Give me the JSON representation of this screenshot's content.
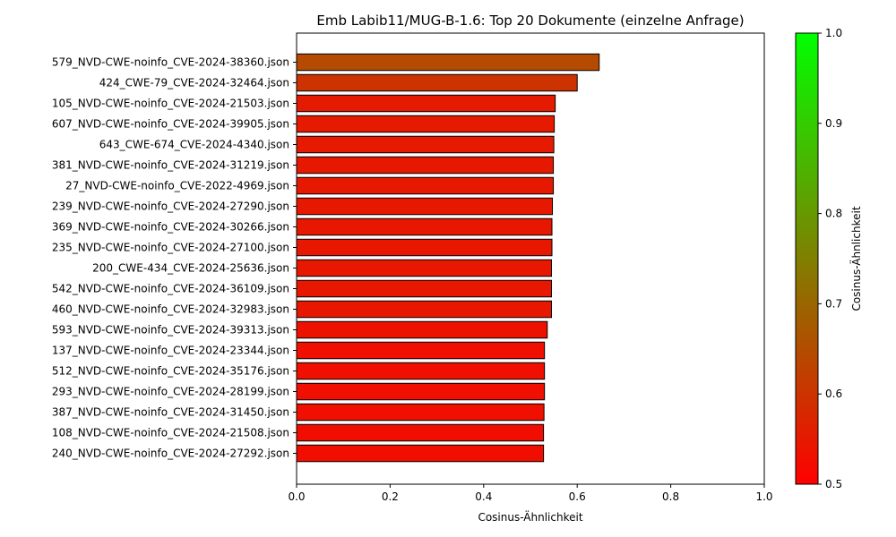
{
  "chart_data": {
    "type": "bar",
    "orientation": "horizontal",
    "title": "Emb Labib11/MUG-B-1.6: Top 20 Dokumente (einzelne Anfrage)",
    "xlabel": "Cosinus-Ähnlichkeit",
    "ylabel": "",
    "xlim": [
      0,
      1.0
    ],
    "xticks": [
      "0.0",
      "0.2",
      "0.4",
      "0.6",
      "0.8",
      "1.0"
    ],
    "grid": false,
    "categories": [
      "579_NVD-CWE-noinfo_CVE-2024-38360.json",
      "424_CWE-79_CVE-2024-32464.json",
      "105_NVD-CWE-noinfo_CVE-2024-21503.json",
      "607_NVD-CWE-noinfo_CVE-2024-39905.json",
      "643_CWE-674_CVE-2024-4340.json",
      "381_NVD-CWE-noinfo_CVE-2024-31219.json",
      "27_NVD-CWE-noinfo_CVE-2022-4969.json",
      "239_NVD-CWE-noinfo_CVE-2024-27290.json",
      "369_NVD-CWE-noinfo_CVE-2024-30266.json",
      "235_NVD-CWE-noinfo_CVE-2024-27100.json",
      "200_CWE-434_CVE-2024-25636.json",
      "542_NVD-CWE-noinfo_CVE-2024-36109.json",
      "460_NVD-CWE-noinfo_CVE-2024-32983.json",
      "593_NVD-CWE-noinfo_CVE-2024-39313.json",
      "137_NVD-CWE-noinfo_CVE-2024-23344.json",
      "512_NVD-CWE-noinfo_CVE-2024-35176.json",
      "293_NVD-CWE-noinfo_CVE-2024-28199.json",
      "387_NVD-CWE-noinfo_CVE-2024-31450.json",
      "108_NVD-CWE-noinfo_CVE-2024-21508.json",
      "240_NVD-CWE-noinfo_CVE-2024-27292.json"
    ],
    "values": [
      0.647,
      0.6,
      0.553,
      0.551,
      0.55,
      0.549,
      0.549,
      0.547,
      0.546,
      0.546,
      0.545,
      0.545,
      0.545,
      0.536,
      0.53,
      0.53,
      0.53,
      0.529,
      0.528,
      0.528
    ],
    "colormap": {
      "min_color": "#ff0000",
      "max_color": "#00ff00",
      "range": [
        0.5,
        1.0
      ]
    },
    "colorbar": {
      "label": "Cosinus-Ähnlichkeit",
      "ticks": [
        "0.5",
        "0.6",
        "0.7",
        "0.8",
        "0.9",
        "1.0"
      ],
      "range": [
        0.5,
        1.0
      ]
    },
    "bar_edge_color": "#000000"
  }
}
